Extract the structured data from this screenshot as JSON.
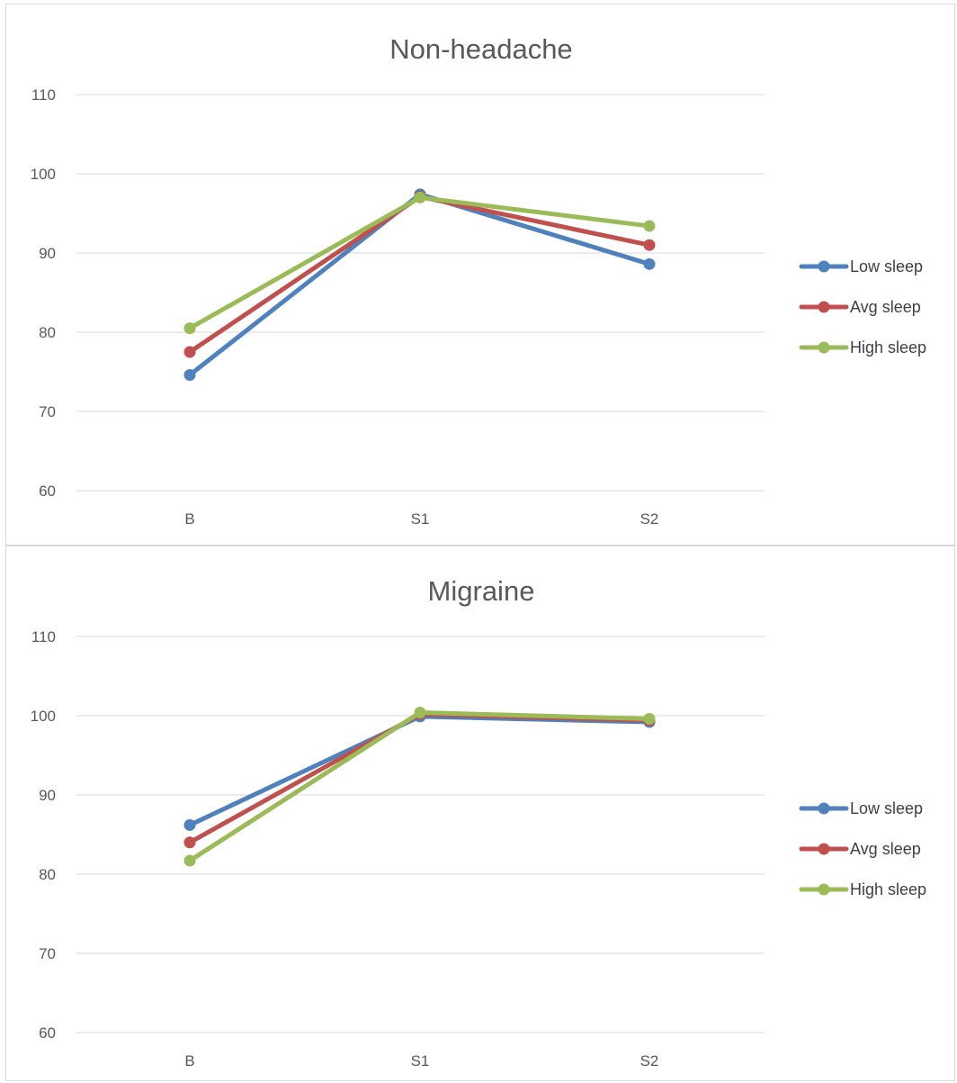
{
  "chart_data": [
    {
      "type": "line",
      "title": "Non-headache",
      "xlabel": "",
      "ylabel": "",
      "categories": [
        "B",
        "S1",
        "S2"
      ],
      "ylim": [
        60,
        110
      ],
      "yticks": [
        60,
        70,
        80,
        90,
        100,
        110
      ],
      "grid": true,
      "legend": "right",
      "series": [
        {
          "name": "Low sleep",
          "color": "#4f81bd",
          "values": [
            74.6,
            97.4,
            88.6
          ]
        },
        {
          "name": "Avg sleep",
          "color": "#c0504d",
          "values": [
            77.5,
            97.1,
            91.0
          ]
        },
        {
          "name": "High sleep",
          "color": "#9bbb59",
          "values": [
            80.5,
            97.0,
            93.4
          ]
        }
      ]
    },
    {
      "type": "line",
      "title": "Migraine",
      "xlabel": "",
      "ylabel": "",
      "categories": [
        "B",
        "S1",
        "S2"
      ],
      "ylim": [
        60,
        110
      ],
      "yticks": [
        60,
        70,
        80,
        90,
        100,
        110
      ],
      "grid": true,
      "legend": "right",
      "series": [
        {
          "name": "Low sleep",
          "color": "#4f81bd",
          "values": [
            86.2,
            99.9,
            99.2
          ]
        },
        {
          "name": "Avg sleep",
          "color": "#c0504d",
          "values": [
            84.0,
            100.2,
            99.4
          ]
        },
        {
          "name": "High sleep",
          "color": "#9bbb59",
          "values": [
            81.7,
            100.4,
            99.6
          ]
        }
      ]
    }
  ]
}
